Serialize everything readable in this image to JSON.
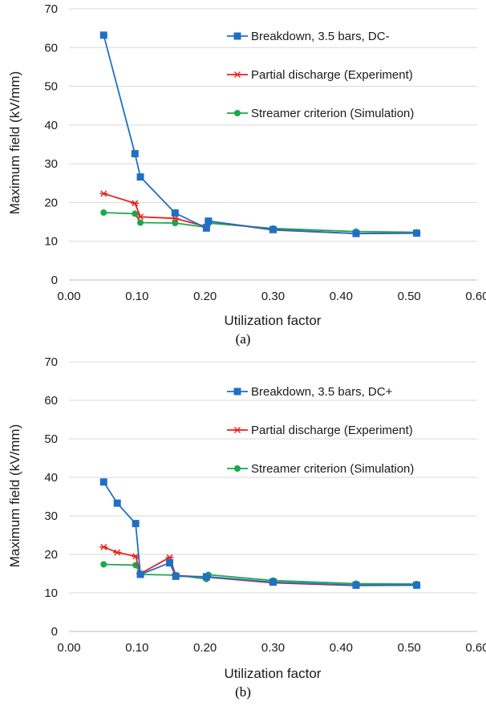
{
  "chart_data": [
    {
      "type": "line",
      "title": "",
      "caption": "(a)",
      "xlabel": "Utilization factor",
      "ylabel": "Maximum field (kV/mm)",
      "xlim": [
        0,
        0.6
      ],
      "ylim": [
        0,
        70
      ],
      "x_ticks": [
        "0.00",
        "0.10",
        "0.20",
        "0.30",
        "0.40",
        "0.50",
        "0.60"
      ],
      "y_ticks": [
        "0",
        "10",
        "20",
        "30",
        "40",
        "50",
        "60",
        "70"
      ],
      "grid": "horizontal",
      "legend_position": "top-right",
      "series": [
        {
          "name": "Breakdown, 3.5 bars, DC-",
          "color": "#1f6fc5",
          "marker": "square",
          "x": [
            0.051,
            0.097,
            0.105,
            0.156,
            0.202,
            0.205,
            0.3,
            0.422,
            0.511
          ],
          "y": [
            63.2,
            32.6,
            26.6,
            17.3,
            13.4,
            15.2,
            13.0,
            12.0,
            12.1
          ]
        },
        {
          "name": "Partial discharge (Experiment)",
          "color": "#e8231d",
          "marker": "star",
          "x": [
            0.051,
            0.097,
            0.105,
            0.156,
            0.202,
            0.205,
            0.3,
            0.422,
            0.511
          ],
          "y": [
            22.3,
            19.8,
            16.3,
            15.9,
            13.8,
            15.2,
            12.9,
            12.0,
            12.1
          ]
        },
        {
          "name": "Streamer criterion (Simulation)",
          "color": "#1aa84a",
          "marker": "circle",
          "x": [
            0.051,
            0.097,
            0.105,
            0.156,
            0.202,
            0.205,
            0.3,
            0.422,
            0.511
          ],
          "y": [
            17.4,
            17.1,
            14.8,
            14.7,
            13.6,
            14.7,
            13.3,
            12.5,
            12.3
          ]
        }
      ]
    },
    {
      "type": "line",
      "title": "",
      "caption": "(b)",
      "xlabel": "Utilization factor",
      "ylabel": "Maximum field (kV/mm)",
      "xlim": [
        0,
        0.6
      ],
      "ylim": [
        0,
        70
      ],
      "x_ticks": [
        "0.00",
        "0.10",
        "0.20",
        "0.30",
        "0.40",
        "0.50",
        "0.60"
      ],
      "y_ticks": [
        "0",
        "10",
        "20",
        "30",
        "40",
        "50",
        "60",
        "70"
      ],
      "grid": "horizontal",
      "legend_position": "top-right",
      "series": [
        {
          "name": "Breakdown, 3.5 bars, DC+",
          "color": "#1f6fc5",
          "marker": "square",
          "x": [
            0.051,
            0.071,
            0.098,
            0.105,
            0.148,
            0.157,
            0.202,
            0.3,
            0.422,
            0.511
          ],
          "y": [
            38.8,
            33.3,
            28.0,
            14.8,
            17.8,
            14.3,
            14.2,
            12.8,
            12.0,
            12.0
          ]
        },
        {
          "name": "Partial discharge (Experiment)",
          "color": "#e8231d",
          "marker": "star",
          "x": [
            0.051,
            0.071,
            0.098,
            0.105,
            0.148,
            0.157,
            0.202,
            0.3,
            0.422,
            0.511
          ],
          "y": [
            21.9,
            20.5,
            19.5,
            15.0,
            19.2,
            14.5,
            14.1,
            12.6,
            11.9,
            12.0
          ]
        },
        {
          "name": "Streamer criterion (Simulation)",
          "color": "#1aa84a",
          "marker": "circle",
          "x": [
            0.051,
            0.098,
            0.105,
            0.157,
            0.202,
            0.205,
            0.3,
            0.422,
            0.511
          ],
          "y": [
            17.4,
            17.2,
            14.8,
            14.6,
            13.6,
            14.7,
            13.2,
            12.4,
            12.3
          ]
        }
      ]
    }
  ]
}
